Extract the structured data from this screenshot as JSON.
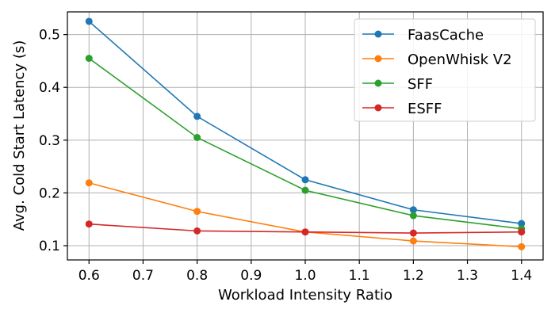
{
  "chart_data": {
    "type": "line",
    "title": "",
    "xlabel": "Workload Intensity Ratio",
    "ylabel": "Avg. Cold Start Latency (s)",
    "xlim": [
      0.56,
      1.44
    ],
    "ylim": [
      0.073,
      0.543
    ],
    "xticks": [
      "0.6",
      "0.7",
      "0.8",
      "0.9",
      "1.0",
      "1.1",
      "1.2",
      "1.3",
      "1.4"
    ],
    "yticks": [
      "0.1",
      "0.2",
      "0.3",
      "0.4",
      "0.5"
    ],
    "grid": true,
    "legend_position": "top-right",
    "x": [
      0.6,
      0.8,
      1.0,
      1.2,
      1.4
    ],
    "series": [
      {
        "name": "FaasCache",
        "color": "#1f77b4",
        "values": [
          0.525,
          0.345,
          0.225,
          0.168,
          0.142
        ]
      },
      {
        "name": "OpenWhisk V2",
        "color": "#ff7f0e",
        "values": [
          0.219,
          0.165,
          0.126,
          0.109,
          0.098
        ]
      },
      {
        "name": "SFF",
        "color": "#2ca02c",
        "values": [
          0.455,
          0.305,
          0.205,
          0.157,
          0.132
        ]
      },
      {
        "name": "ESFF",
        "color": "#d62728",
        "values": [
          0.141,
          0.128,
          0.126,
          0.124,
          0.126
        ]
      }
    ]
  }
}
